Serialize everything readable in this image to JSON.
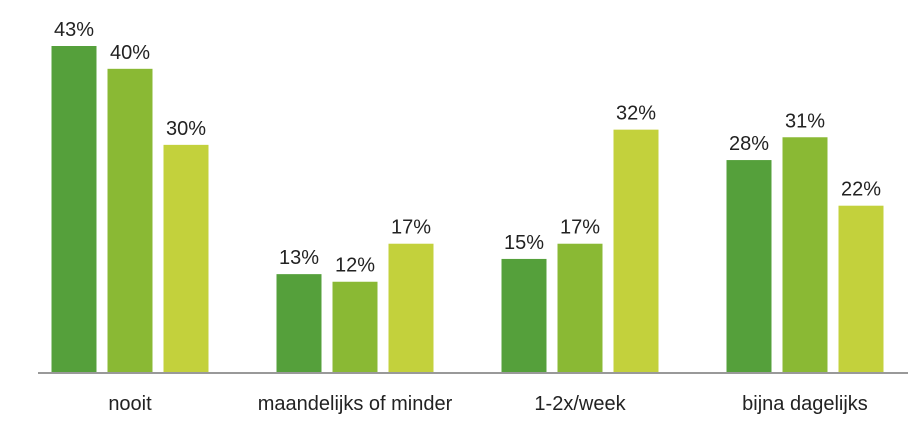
{
  "chart_data": {
    "type": "bar",
    "categories": [
      "nooit",
      "maandelijks of minder",
      "1-2x/week",
      "bijna dagelijks"
    ],
    "series": [
      {
        "color": "#55a03b",
        "values": [
          43,
          13,
          15,
          28
        ],
        "value_labels": [
          "43%",
          "13%",
          "15%",
          "28%"
        ]
      },
      {
        "color": "#8ab934",
        "values": [
          40,
          12,
          17,
          31
        ],
        "value_labels": [
          "40%",
          "12%",
          "17%",
          "31%"
        ]
      },
      {
        "color": "#c3d13c",
        "values": [
          30,
          17,
          32,
          22
        ],
        "value_labels": [
          "30%",
          "17%",
          "32%",
          "22%"
        ]
      }
    ]
  }
}
